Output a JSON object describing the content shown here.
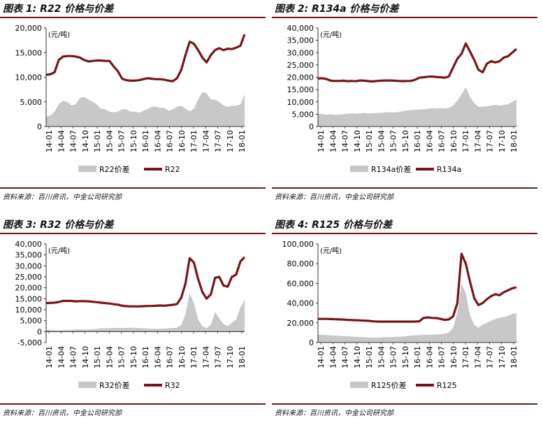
{
  "source": "资料来源：百川资讯，中金公司研究部",
  "colors": {
    "price": "#7a1416",
    "spread": "#c8c8c8",
    "rule": "#7a1416"
  },
  "chart_data": [
    {
      "type": "area",
      "title": "图表 1: R22 价格与价差",
      "unit_label": "(元/吨)",
      "x_labels": [
        "14-01",
        "14-04",
        "14-07",
        "14-10",
        "15-01",
        "15-04",
        "15-07",
        "15-10",
        "16-01",
        "16-04",
        "16-07",
        "16-10",
        "17-01",
        "17-04",
        "17-07",
        "17-10",
        "18-01"
      ],
      "ylim": [
        0,
        20000
      ],
      "yticks": [
        0,
        5000,
        10000,
        15000,
        20000
      ],
      "ytick_labels": [
        "0",
        "5,000",
        "10,000",
        "15,000",
        "20,000"
      ],
      "series": [
        {
          "name": "R22价差",
          "kind": "area",
          "values": [
            2000,
            2200,
            3000,
            4500,
            5200,
            5000,
            4300,
            4500,
            5800,
            6000,
            5500,
            5000,
            4500,
            3600,
            3500,
            3000,
            2900,
            3000,
            3500,
            3500,
            3000,
            3000,
            2800,
            3200,
            3500,
            4000,
            4000,
            3800,
            3800,
            3200,
            3500,
            4000,
            4200,
            3600,
            3100,
            3600,
            5500,
            7000,
            6800,
            5500,
            5400,
            5000,
            4300,
            4000,
            4200,
            4200,
            4500,
            6500
          ]
        },
        {
          "name": "R22",
          "kind": "line",
          "values": [
            10500,
            10600,
            11000,
            13500,
            14200,
            14300,
            14300,
            14200,
            14000,
            13500,
            13200,
            13300,
            13400,
            13400,
            13300,
            13300,
            12200,
            11200,
            9700,
            9400,
            9300,
            9300,
            9400,
            9600,
            9800,
            9700,
            9600,
            9600,
            9500,
            9300,
            9200,
            9800,
            11500,
            14500,
            17200,
            16800,
            15500,
            14000,
            13000,
            14500,
            15500,
            15900,
            15500,
            15800,
            15700,
            16000,
            16400,
            18700
          ]
        }
      ]
    },
    {
      "type": "area",
      "title": "图表 2: R134a 价格与价差",
      "unit_label": "(元/吨)",
      "x_labels": [
        "14-01",
        "14-04",
        "14-07",
        "14-10",
        "15-01",
        "15-04",
        "15-07",
        "15-10",
        "16-01",
        "16-04",
        "16-07",
        "16-10",
        "17-01",
        "17-04",
        "17-07",
        "17-10",
        "18-01"
      ],
      "ylim": [
        0,
        40000
      ],
      "yticks": [
        0,
        5000,
        10000,
        15000,
        20000,
        25000,
        30000,
        35000,
        40000
      ],
      "ytick_labels": [
        "0",
        "5,000",
        "10,000",
        "15,000",
        "20,000",
        "25,000",
        "30,000",
        "35,000",
        "40,000"
      ],
      "series": [
        {
          "name": "R134a价差",
          "kind": "area",
          "values": [
            5000,
            5200,
            4800,
            5000,
            4700,
            4800,
            5000,
            5200,
            5300,
            5200,
            5400,
            5500,
            5300,
            5400,
            5500,
            5600,
            5800,
            5800,
            5700,
            5900,
            6200,
            6500,
            6700,
            6800,
            6900,
            7000,
            7200,
            7400,
            7300,
            7500,
            7300,
            7600,
            8500,
            10500,
            13000,
            16000,
            12000,
            9500,
            8000,
            8000,
            8200,
            8500,
            8800,
            8500,
            8800,
            9000,
            10000,
            11000
          ]
        },
        {
          "name": "R134a",
          "kind": "line",
          "values": [
            19500,
            19600,
            19300,
            18600,
            18500,
            18500,
            18600,
            18400,
            18500,
            18400,
            18700,
            18600,
            18400,
            18300,
            18500,
            18600,
            18700,
            18700,
            18600,
            18500,
            18400,
            18500,
            18500,
            19000,
            19800,
            20000,
            20200,
            20300,
            20100,
            20000,
            19800,
            20300,
            24000,
            27500,
            29500,
            33700,
            30500,
            27000,
            23000,
            22000,
            25500,
            26500,
            26000,
            26500,
            28000,
            28500,
            30000,
            31500
          ]
        }
      ]
    },
    {
      "type": "area",
      "title": "图表 3: R32 价格与价差",
      "unit_label": "(元/吨)",
      "x_labels": [
        "14-01",
        "14-04",
        "14-07",
        "14-10",
        "15-01",
        "15-04",
        "15-07",
        "15-10",
        "16-01",
        "16-04",
        "16-07",
        "16-10",
        "17-01",
        "17-04",
        "17-07",
        "17-10",
        "18-01"
      ],
      "ylim": [
        -5000,
        40000
      ],
      "yticks": [
        -5000,
        0,
        5000,
        10000,
        15000,
        20000,
        25000,
        30000,
        35000,
        40000
      ],
      "ytick_labels": [
        "-5,000",
        "0",
        "5,000",
        "10,000",
        "15,000",
        "20,000",
        "25,000",
        "30,000",
        "35,000",
        "40,000"
      ],
      "series": [
        {
          "name": "R32价差",
          "kind": "area",
          "values": [
            800,
            700,
            600,
            500,
            600,
            700,
            800,
            900,
            1000,
            900,
            1000,
            1100,
            1200,
            1400,
            1500,
            1500,
            1600,
            1700,
            1600,
            1700,
            1800,
            1700,
            1600,
            1500,
            1400,
            1300,
            1200,
            1300,
            1400,
            1500,
            1600,
            1800,
            3000,
            8000,
            17500,
            13000,
            5500,
            2500,
            1500,
            3000,
            9000,
            6000,
            3500,
            2500,
            4000,
            5500,
            11000,
            14500
          ]
        },
        {
          "name": "R32",
          "kind": "line",
          "values": [
            13000,
            13100,
            13200,
            13500,
            14000,
            14000,
            14000,
            13800,
            13900,
            13900,
            13800,
            13600,
            13400,
            13200,
            13000,
            12800,
            12500,
            12300,
            11800,
            11600,
            11500,
            11500,
            11500,
            11600,
            11700,
            11700,
            11800,
            11900,
            11800,
            12000,
            12200,
            12600,
            15500,
            22000,
            33500,
            31500,
            24000,
            18000,
            15000,
            17000,
            24500,
            25000,
            21000,
            20500,
            25000,
            26000,
            32000,
            34000
          ]
        }
      ]
    },
    {
      "type": "area",
      "title": "图表 4: R125 价格与价差",
      "unit_label": "(元/吨)",
      "x_labels": [
        "14-01",
        "14-04",
        "14-07",
        "14-10",
        "15-01",
        "15-04",
        "15-07",
        "15-10",
        "16-01",
        "16-04",
        "16-07",
        "16-10",
        "17-01",
        "17-04",
        "17-07",
        "17-10",
        "18-01"
      ],
      "ylim": [
        0,
        100000
      ],
      "yticks": [
        0,
        20000,
        40000,
        60000,
        80000,
        100000
      ],
      "ytick_labels": [
        "0",
        "20,000",
        "40,000",
        "60,000",
        "80,000",
        "100,000"
      ],
      "series": [
        {
          "name": "R125价差",
          "kind": "area",
          "values": [
            8000,
            7800,
            7500,
            7200,
            7000,
            6800,
            6500,
            6300,
            6000,
            5800,
            5600,
            5500,
            5200,
            5000,
            5000,
            5200,
            5400,
            5500,
            5600,
            5800,
            6000,
            6500,
            7000,
            7200,
            7500,
            7800,
            8000,
            8000,
            8200,
            8500,
            9000,
            10000,
            15000,
            30000,
            60000,
            50000,
            28000,
            18000,
            15000,
            18000,
            20000,
            22000,
            24000,
            25000,
            26000,
            27000,
            29000,
            30000
          ]
        },
        {
          "name": "R125",
          "kind": "line",
          "values": [
            24000,
            24000,
            24000,
            23800,
            23600,
            23500,
            23300,
            23000,
            22800,
            22600,
            22400,
            22200,
            22000,
            21500,
            21300,
            21200,
            21200,
            21200,
            21200,
            21200,
            21200,
            21200,
            21200,
            21300,
            21500,
            25000,
            25500,
            25000,
            24800,
            24000,
            23000,
            23500,
            26500,
            40000,
            90000,
            80000,
            62000,
            45000,
            38000,
            40000,
            44000,
            47000,
            49000,
            48000,
            51000,
            53000,
            55000,
            56000
          ]
        }
      ]
    }
  ]
}
